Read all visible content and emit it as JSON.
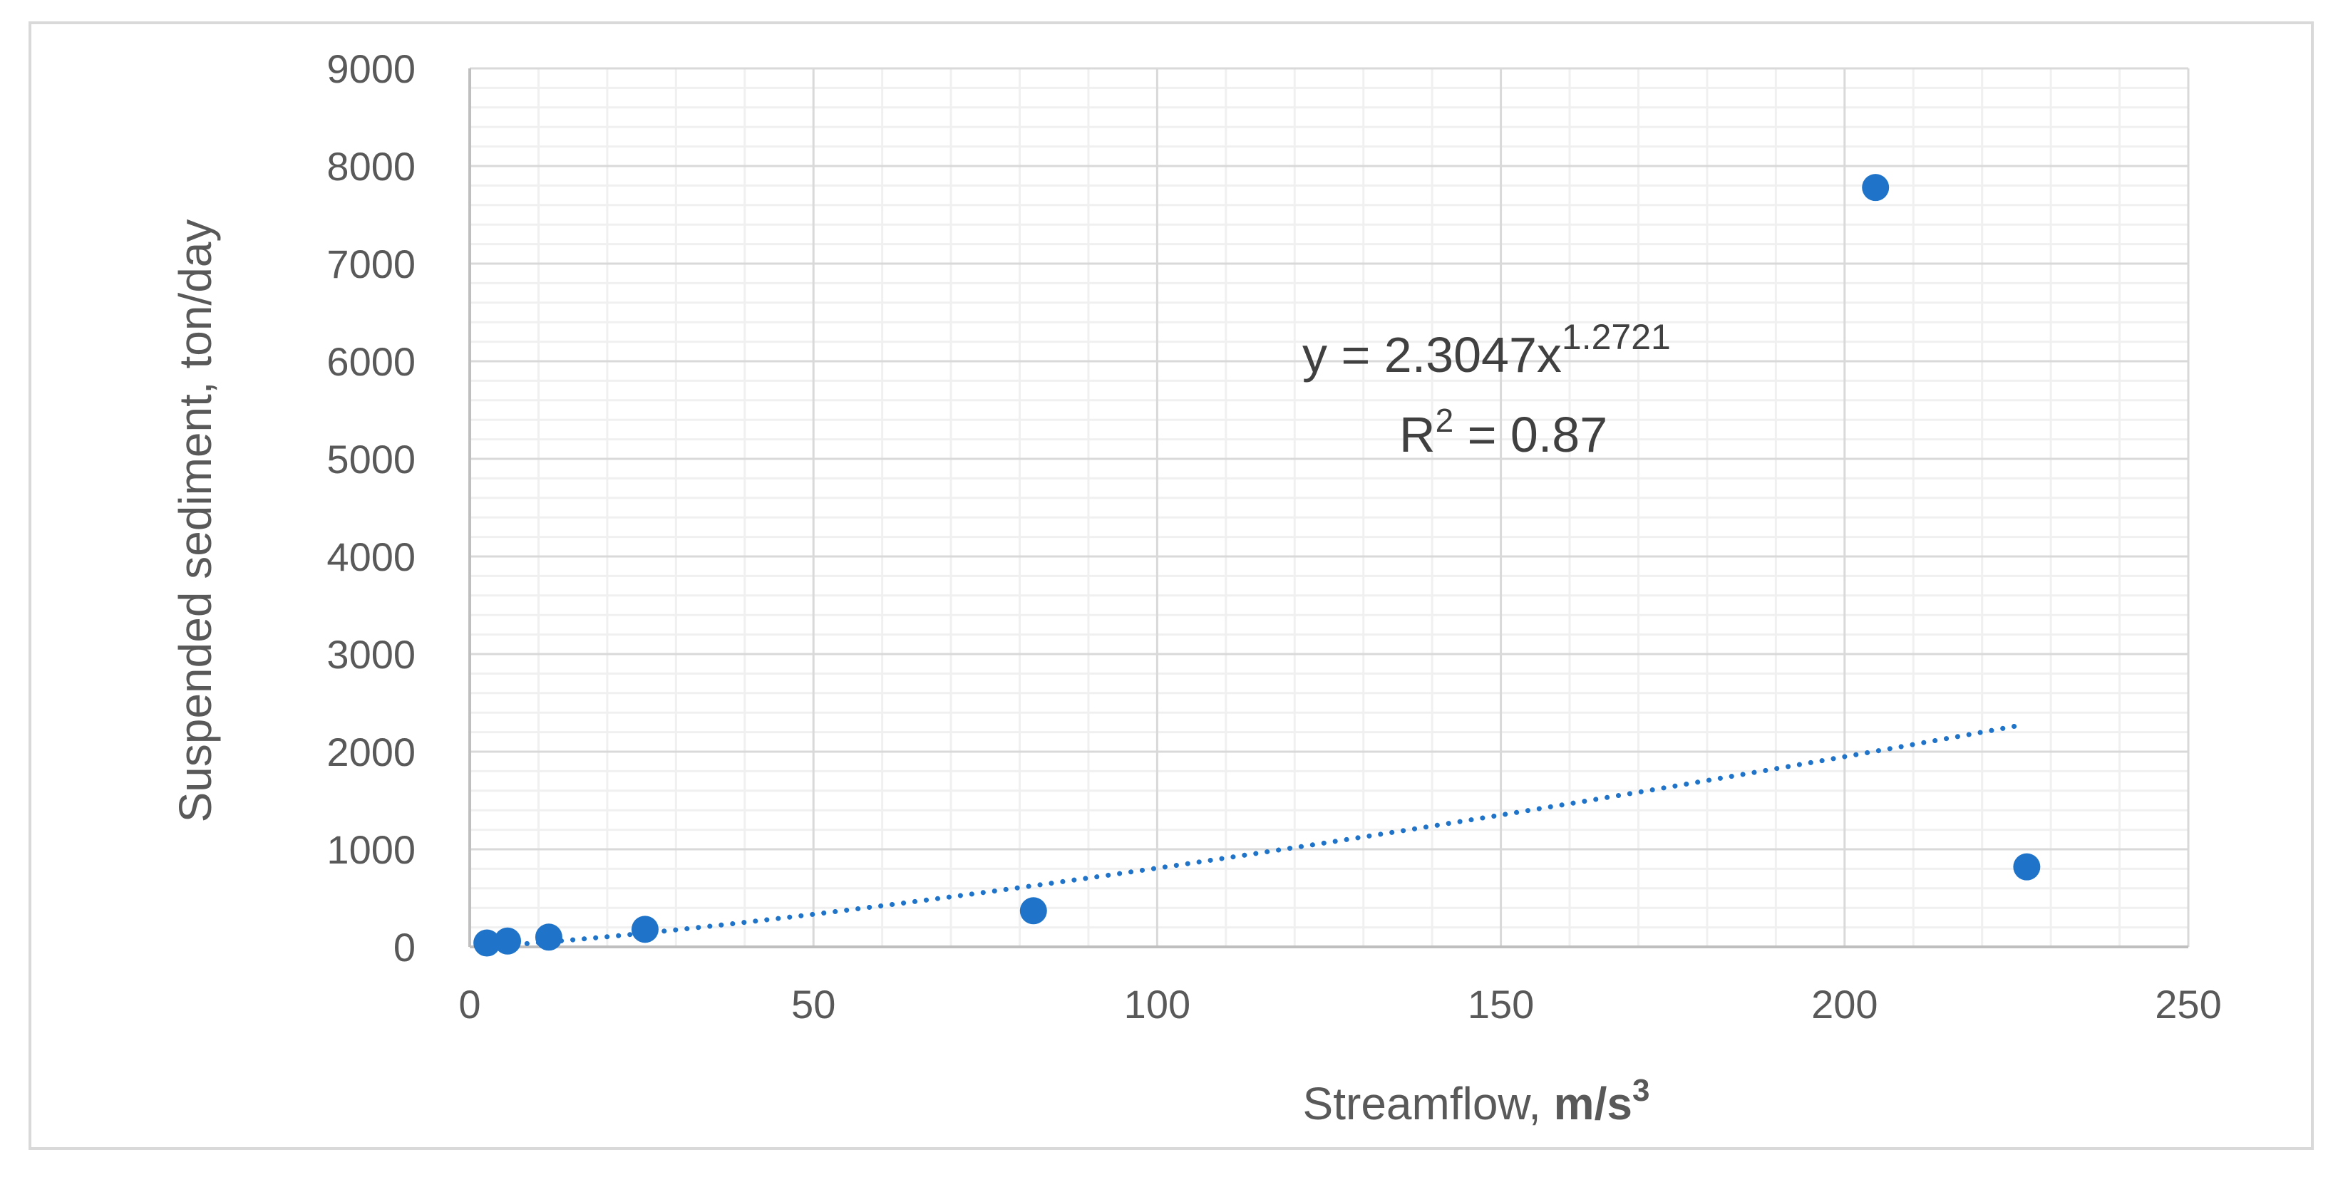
{
  "chart_data": {
    "type": "scatter",
    "xlabel": "Streamflow, ",
    "xlabel_unit": "m/s",
    "xlabel_unit_sup": "3",
    "ylabel": "Suspended sediment, ton/day",
    "xlim": [
      0,
      250
    ],
    "ylim": [
      0,
      9000
    ],
    "x_ticks": [
      0,
      50,
      100,
      150,
      200,
      250
    ],
    "y_ticks": [
      0,
      1000,
      2000,
      3000,
      4000,
      5000,
      6000,
      7000,
      8000,
      9000
    ],
    "grid": true,
    "legend": "none",
    "point_color": "#1f74c9",
    "trendline_color": "#1f74c9",
    "points": [
      {
        "x": 2.5,
        "y": 40
      },
      {
        "x": 5.5,
        "y": 60
      },
      {
        "x": 11.5,
        "y": 100
      },
      {
        "x": 25.5,
        "y": 180
      },
      {
        "x": 82,
        "y": 370
      },
      {
        "x": 204.5,
        "y": 7780
      },
      {
        "x": 226.5,
        "y": 820
      }
    ],
    "trendline": {
      "type": "power",
      "coefficient": 2.3047,
      "exponent": 1.2721,
      "x_range": [
        5,
        226
      ]
    },
    "annotations": {
      "equation_main": "y = 2.3047x",
      "equation_exponent": "1.2721",
      "r2_label": "R",
      "r2_sup": "2",
      "r2_value": " = 0.87"
    }
  }
}
